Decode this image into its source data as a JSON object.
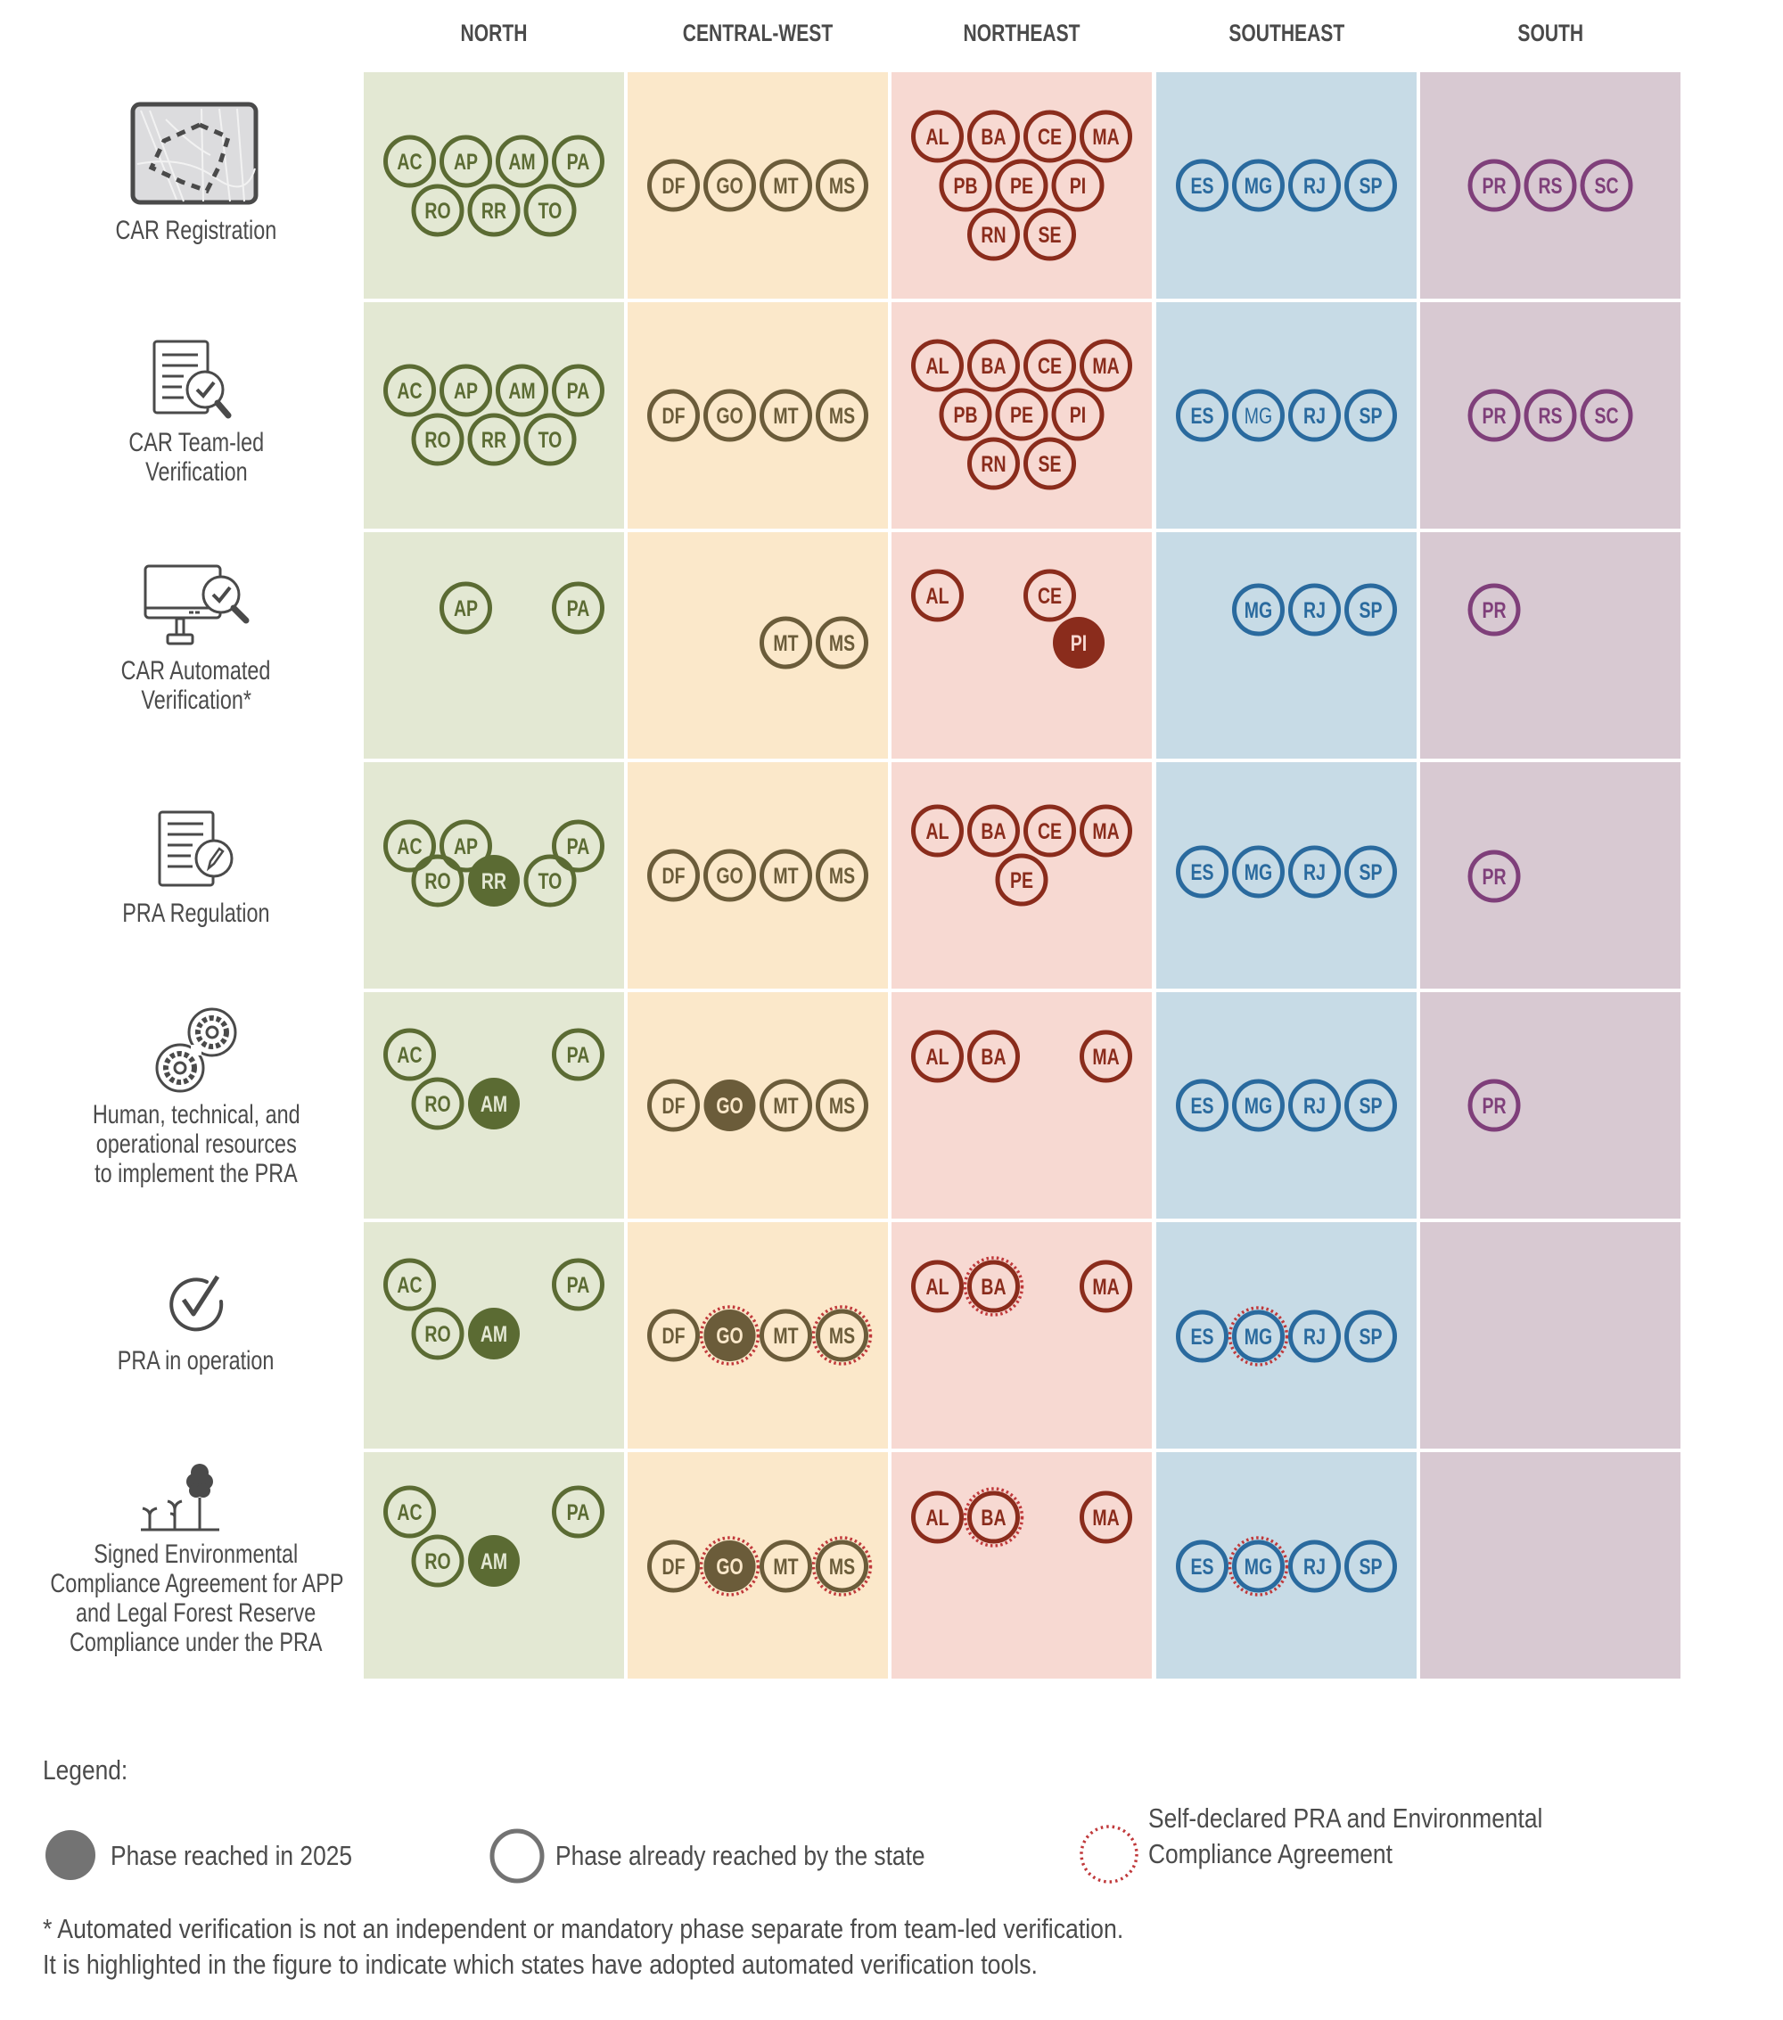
{
  "regions": [
    {
      "key": "north",
      "label": "NORTH",
      "bg": "#e3e8d3",
      "color": "#5b6b33",
      "text_on_fill": "#e3e8d3"
    },
    {
      "key": "central_west",
      "label": "CENTRAL-WEST",
      "bg": "#fbe8ca",
      "color": "#6b5c3a",
      "text_on_fill": "#fbe8ca"
    },
    {
      "key": "northeast",
      "label": "NORTHEAST",
      "bg": "#f7d9d2",
      "color": "#8a2c1c",
      "text_on_fill": "#f7d9d2"
    },
    {
      "key": "southeast",
      "label": "SOUTHEAST",
      "bg": "#c7dbe6",
      "color": "#2a6a9e",
      "text_on_fill": "#c7dbe6"
    },
    {
      "key": "south",
      "label": "SOUTH",
      "bg": "#d8c9d2",
      "color": "#7f3f7a",
      "text_on_fill": "#d8c9d2"
    }
  ],
  "self_declared_color": "#c0393b",
  "phases": [
    {
      "label_lines": [
        "CAR Registration"
      ],
      "icon": "map-area-icon",
      "cells": {
        "north": [
          {
            "state": "AC",
            "status": "reached"
          },
          {
            "state": "AP",
            "status": "reached"
          },
          {
            "state": "AM",
            "status": "reached"
          },
          {
            "state": "PA",
            "status": "reached"
          },
          {
            "state": "RO",
            "status": "reached"
          },
          {
            "state": "RR",
            "status": "reached"
          },
          {
            "state": "TO",
            "status": "reached"
          }
        ],
        "central_west": [
          {
            "state": "DF",
            "status": "reached"
          },
          {
            "state": "GO",
            "status": "reached"
          },
          {
            "state": "MT",
            "status": "reached"
          },
          {
            "state": "MS",
            "status": "reached"
          }
        ],
        "northeast": [
          {
            "state": "AL",
            "status": "reached"
          },
          {
            "state": "BA",
            "status": "reached"
          },
          {
            "state": "CE",
            "status": "reached"
          },
          {
            "state": "MA",
            "status": "reached"
          },
          {
            "state": "PB",
            "status": "reached"
          },
          {
            "state": "PE",
            "status": "reached"
          },
          {
            "state": "PI",
            "status": "reached"
          },
          {
            "state": "RN",
            "status": "reached"
          },
          {
            "state": "SE",
            "status": "reached"
          }
        ],
        "southeast": [
          {
            "state": "ES",
            "status": "reached"
          },
          {
            "state": "MG",
            "status": "reached"
          },
          {
            "state": "RJ",
            "status": "reached"
          },
          {
            "state": "SP",
            "status": "reached"
          }
        ],
        "south": [
          {
            "state": "PR",
            "status": "reached"
          },
          {
            "state": "RS",
            "status": "reached"
          },
          {
            "state": "SC",
            "status": "reached"
          }
        ]
      }
    },
    {
      "label_lines": [
        "CAR Team-led",
        "Verification"
      ],
      "icon": "document-magnifier-check-icon",
      "cells": {
        "north": [
          {
            "state": "AC",
            "status": "reached"
          },
          {
            "state": "AP",
            "status": "reached"
          },
          {
            "state": "AM",
            "status": "reached"
          },
          {
            "state": "PA",
            "status": "reached"
          },
          {
            "state": "RO",
            "status": "reached"
          },
          {
            "state": "RR",
            "status": "reached"
          },
          {
            "state": "TO",
            "status": "reached"
          }
        ],
        "central_west": [
          {
            "state": "DF",
            "status": "reached"
          },
          {
            "state": "GO",
            "status": "reached"
          },
          {
            "state": "MT",
            "status": "reached"
          },
          {
            "state": "MS",
            "status": "reached"
          }
        ],
        "northeast": [
          {
            "state": "AL",
            "status": "reached"
          },
          {
            "state": "BA",
            "status": "reached"
          },
          {
            "state": "CE",
            "status": "reached"
          },
          {
            "state": "MA",
            "status": "reached"
          },
          {
            "state": "PB",
            "status": "reached"
          },
          {
            "state": "PE",
            "status": "reached"
          },
          {
            "state": "PI",
            "status": "reached"
          },
          {
            "state": "RN",
            "status": "reached"
          },
          {
            "state": "SE",
            "status": "reached"
          }
        ],
        "southeast": [
          {
            "state": "ES",
            "status": "reached"
          },
          {
            "state": "MG",
            "status": "reached",
            "light_label": true
          },
          {
            "state": "RJ",
            "status": "reached"
          },
          {
            "state": "SP",
            "status": "reached"
          }
        ],
        "south": [
          {
            "state": "PR",
            "status": "reached"
          },
          {
            "state": "RS",
            "status": "reached"
          },
          {
            "state": "SC",
            "status": "reached"
          }
        ]
      }
    },
    {
      "label_lines": [
        "CAR Automated",
        "Verification*"
      ],
      "icon": "monitor-magnifier-check-icon",
      "cells": {
        "north": [
          {
            "state": "AP",
            "status": "reached"
          },
          {
            "state": "PA",
            "status": "reached"
          }
        ],
        "central_west": [
          {
            "state": "MT",
            "status": "reached"
          },
          {
            "state": "MS",
            "status": "reached"
          }
        ],
        "northeast": [
          {
            "state": "AL",
            "status": "reached"
          },
          {
            "state": "CE",
            "status": "reached"
          },
          {
            "state": "PI",
            "status": "reached_2025"
          }
        ],
        "southeast": [
          {
            "state": "MG",
            "status": "reached"
          },
          {
            "state": "RJ",
            "status": "reached"
          },
          {
            "state": "SP",
            "status": "reached"
          }
        ],
        "south": [
          {
            "state": "PR",
            "status": "reached"
          }
        ]
      }
    },
    {
      "label_lines": [
        "PRA Regulation"
      ],
      "icon": "document-pencil-icon",
      "cells": {
        "north": [
          {
            "state": "AC",
            "status": "reached"
          },
          {
            "state": "AP",
            "status": "reached"
          },
          {
            "state": "PA",
            "status": "reached"
          },
          {
            "state": "RO",
            "status": "reached"
          },
          {
            "state": "RR",
            "status": "reached_2025"
          },
          {
            "state": "TO",
            "status": "reached"
          }
        ],
        "central_west": [
          {
            "state": "DF",
            "status": "reached"
          },
          {
            "state": "GO",
            "status": "reached"
          },
          {
            "state": "MT",
            "status": "reached"
          },
          {
            "state": "MS",
            "status": "reached"
          }
        ],
        "northeast": [
          {
            "state": "AL",
            "status": "reached"
          },
          {
            "state": "BA",
            "status": "reached"
          },
          {
            "state": "CE",
            "status": "reached"
          },
          {
            "state": "MA",
            "status": "reached"
          },
          {
            "state": "PE",
            "status": "reached"
          }
        ],
        "southeast": [
          {
            "state": "ES",
            "status": "reached"
          },
          {
            "state": "MG",
            "status": "reached"
          },
          {
            "state": "RJ",
            "status": "reached"
          },
          {
            "state": "SP",
            "status": "reached"
          }
        ],
        "south": [
          {
            "state": "PR",
            "status": "reached"
          }
        ]
      }
    },
    {
      "label_lines": [
        "Human, technical, and",
        "operational resources",
        "to implement the PRA"
      ],
      "icon": "gears-icon",
      "cells": {
        "north": [
          {
            "state": "AC",
            "status": "reached"
          },
          {
            "state": "PA",
            "status": "reached"
          },
          {
            "state": "RO",
            "status": "reached"
          },
          {
            "state": "AM",
            "status": "reached_2025"
          }
        ],
        "central_west": [
          {
            "state": "DF",
            "status": "reached"
          },
          {
            "state": "GO",
            "status": "reached_2025"
          },
          {
            "state": "MT",
            "status": "reached"
          },
          {
            "state": "MS",
            "status": "reached"
          }
        ],
        "northeast": [
          {
            "state": "AL",
            "status": "reached"
          },
          {
            "state": "BA",
            "status": "reached"
          },
          {
            "state": "MA",
            "status": "reached"
          }
        ],
        "southeast": [
          {
            "state": "ES",
            "status": "reached"
          },
          {
            "state": "MG",
            "status": "reached"
          },
          {
            "state": "RJ",
            "status": "reached"
          },
          {
            "state": "SP",
            "status": "reached"
          }
        ],
        "south": [
          {
            "state": "PR",
            "status": "reached"
          }
        ]
      }
    },
    {
      "label_lines": [
        "PRA in operation"
      ],
      "icon": "circle-check-icon",
      "cells": {
        "north": [
          {
            "state": "AC",
            "status": "reached"
          },
          {
            "state": "PA",
            "status": "reached"
          },
          {
            "state": "RO",
            "status": "reached"
          },
          {
            "state": "AM",
            "status": "reached_2025"
          }
        ],
        "central_west": [
          {
            "state": "DF",
            "status": "reached"
          },
          {
            "state": "GO",
            "status": "reached_2025",
            "self_declared": true
          },
          {
            "state": "MT",
            "status": "reached"
          },
          {
            "state": "MS",
            "status": "reached",
            "self_declared": true
          }
        ],
        "northeast": [
          {
            "state": "AL",
            "status": "reached"
          },
          {
            "state": "BA",
            "status": "reached",
            "self_declared": true
          },
          {
            "state": "MA",
            "status": "reached"
          }
        ],
        "southeast": [
          {
            "state": "ES",
            "status": "reached"
          },
          {
            "state": "MG",
            "status": "reached",
            "self_declared": true
          },
          {
            "state": "RJ",
            "status": "reached"
          },
          {
            "state": "SP",
            "status": "reached"
          }
        ],
        "south": []
      }
    },
    {
      "label_lines": [
        "Signed Environmental",
        "Compliance Agreement for APP",
        "and Legal Forest Reserve",
        "Compliance under the PRA"
      ],
      "icon": "trees-icon",
      "cells": {
        "north": [
          {
            "state": "AC",
            "status": "reached"
          },
          {
            "state": "PA",
            "status": "reached"
          },
          {
            "state": "RO",
            "status": "reached"
          },
          {
            "state": "AM",
            "status": "reached_2025"
          }
        ],
        "central_west": [
          {
            "state": "DF",
            "status": "reached"
          },
          {
            "state": "GO",
            "status": "reached_2025",
            "self_declared": true
          },
          {
            "state": "MT",
            "status": "reached"
          },
          {
            "state": "MS",
            "status": "reached",
            "self_declared": true
          }
        ],
        "northeast": [
          {
            "state": "AL",
            "status": "reached"
          },
          {
            "state": "BA",
            "status": "reached",
            "self_declared": true
          },
          {
            "state": "MA",
            "status": "reached"
          }
        ],
        "southeast": [
          {
            "state": "ES",
            "status": "reached"
          },
          {
            "state": "MG",
            "status": "reached",
            "self_declared": true
          },
          {
            "state": "RJ",
            "status": "reached"
          },
          {
            "state": "SP",
            "status": "reached"
          }
        ],
        "south": []
      }
    }
  ],
  "legend": {
    "title": "Legend:",
    "items": [
      {
        "key": "reached_2025",
        "label_lines": [
          "Phase reached in 2025"
        ],
        "swatch_color": "#737373"
      },
      {
        "key": "reached",
        "label_lines": [
          "Phase already reached by the state"
        ],
        "swatch_color": "#737373"
      },
      {
        "key": "self_declared",
        "label_lines": [
          "Self-declared PRA and Environmental",
          "Compliance Agreement"
        ],
        "swatch_color": "#c0393b"
      }
    ]
  },
  "footnote": {
    "lines": [
      "*  Automated verification is not an independent or mandatory phase separate from team-led verification.",
      "It is highlighted in the figure to indicate which states have adopted automated verification tools."
    ]
  }
}
